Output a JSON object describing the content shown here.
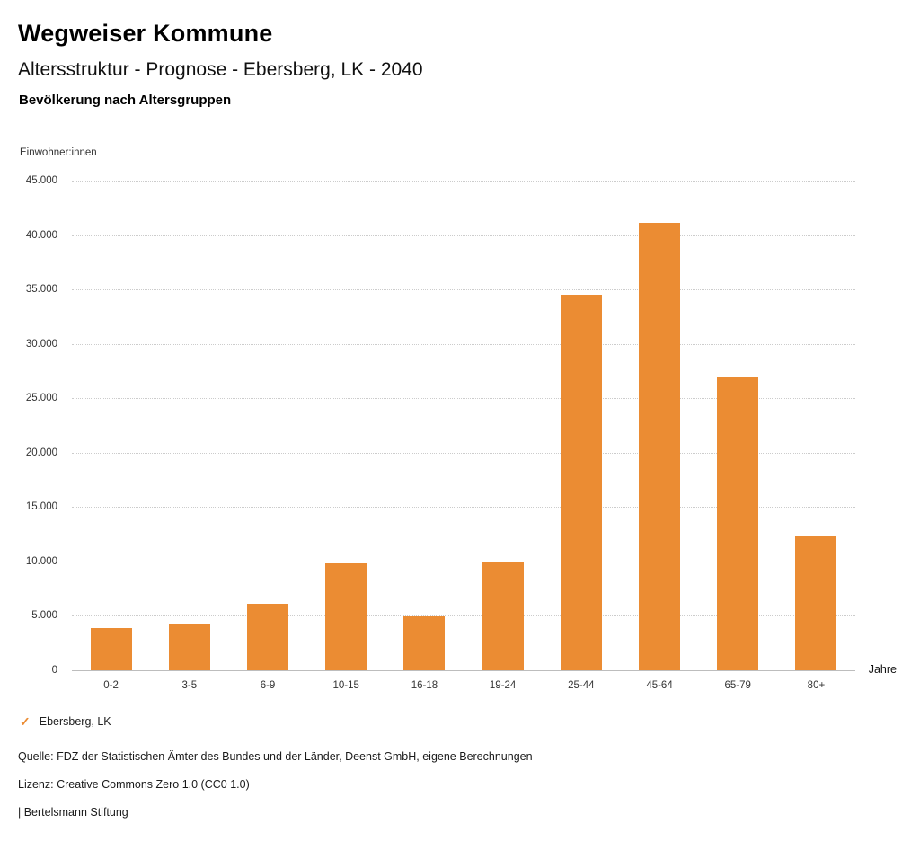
{
  "header": {
    "brand": "Wegweiser Kommune",
    "title": "Altersstruktur - Prognose - Ebersberg, LK - 2040",
    "subtitle": "Bevölkerung nach Altersgruppen"
  },
  "chart_data": {
    "type": "bar",
    "title": "Bevölkerung nach Altersgruppen",
    "ylabel": "Einwohner:innen",
    "xlabel": "Jahre",
    "categories": [
      "0-2",
      "3-5",
      "6-9",
      "10-15",
      "16-18",
      "19-24",
      "25-44",
      "45-64",
      "65-79",
      "80+"
    ],
    "values": [
      3900,
      4300,
      6100,
      9800,
      4950,
      9900,
      34500,
      41100,
      26900,
      12400
    ],
    "ylim": [
      0,
      45000
    ],
    "ytick_step": 5000,
    "grid": true,
    "bar_color": "#EB8C33",
    "legend_position": "bottom-left",
    "legend": [
      {
        "label": "Ebersberg, LK",
        "color": "#EB8C33",
        "check_icon": "✓"
      }
    ]
  },
  "footer": {
    "source": "Quelle: FDZ der Statistischen Ämter des Bundes und der Länder, Deenst GmbH, eigene Berechnungen",
    "license": "Lizenz: Creative Commons Zero 1.0 (CC0 1.0)",
    "attribution": "| Bertelsmann Stiftung"
  }
}
